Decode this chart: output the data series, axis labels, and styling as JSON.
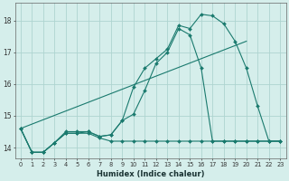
{
  "background_color": "#d5eeeb",
  "grid_color": "#aed4d0",
  "line_color": "#1a7a6e",
  "xlabel": "Humidex (Indice chaleur)",
  "ylim": [
    13.65,
    18.55
  ],
  "xlim": [
    -0.5,
    23.5
  ],
  "yticks": [
    14,
    15,
    16,
    17,
    18
  ],
  "xticks": [
    0,
    1,
    2,
    3,
    4,
    5,
    6,
    7,
    8,
    9,
    10,
    11,
    12,
    13,
    14,
    15,
    16,
    17,
    18,
    19,
    20,
    21,
    22,
    23
  ],
  "curve1_x": [
    0,
    1,
    2,
    3,
    4,
    5,
    6,
    7,
    8,
    9,
    10,
    11,
    12,
    13,
    14,
    15,
    16,
    17,
    18,
    19,
    20,
    21,
    22,
    23
  ],
  "curve1_y": [
    14.6,
    13.85,
    13.85,
    14.15,
    14.45,
    14.45,
    14.45,
    14.3,
    14.2,
    14.2,
    14.2,
    14.2,
    14.2,
    14.2,
    14.2,
    14.2,
    14.2,
    14.2,
    14.2,
    14.2,
    14.2,
    14.2,
    14.2,
    14.2
  ],
  "curve2_x": [
    0,
    1,
    2,
    3,
    4,
    5,
    6,
    7,
    8,
    9,
    10,
    11,
    12,
    13,
    14,
    15,
    16,
    17,
    18,
    19,
    20,
    21,
    22,
    23
  ],
  "curve2_y": [
    14.6,
    13.85,
    13.85,
    14.15,
    14.45,
    14.45,
    14.5,
    14.35,
    14.4,
    14.85,
    15.05,
    15.8,
    16.65,
    17.0,
    17.75,
    17.55,
    16.5,
    14.2,
    14.2,
    14.2,
    14.2,
    14.2,
    14.2,
    14.2
  ],
  "curve3_x": [
    0,
    1,
    2,
    3,
    4,
    5,
    6,
    7,
    8,
    9,
    10,
    11,
    12,
    13,
    14,
    15,
    16,
    17,
    18,
    19,
    20,
    21,
    22,
    23
  ],
  "curve3_y": [
    14.6,
    13.85,
    13.85,
    14.15,
    14.5,
    14.5,
    14.5,
    14.35,
    14.4,
    14.85,
    15.9,
    16.5,
    16.8,
    17.1,
    17.85,
    17.75,
    18.2,
    18.15,
    17.9,
    17.35,
    16.5,
    15.3,
    14.2,
    14.2
  ],
  "curve4_x": [
    0,
    20
  ],
  "curve4_y": [
    14.6,
    17.35
  ]
}
